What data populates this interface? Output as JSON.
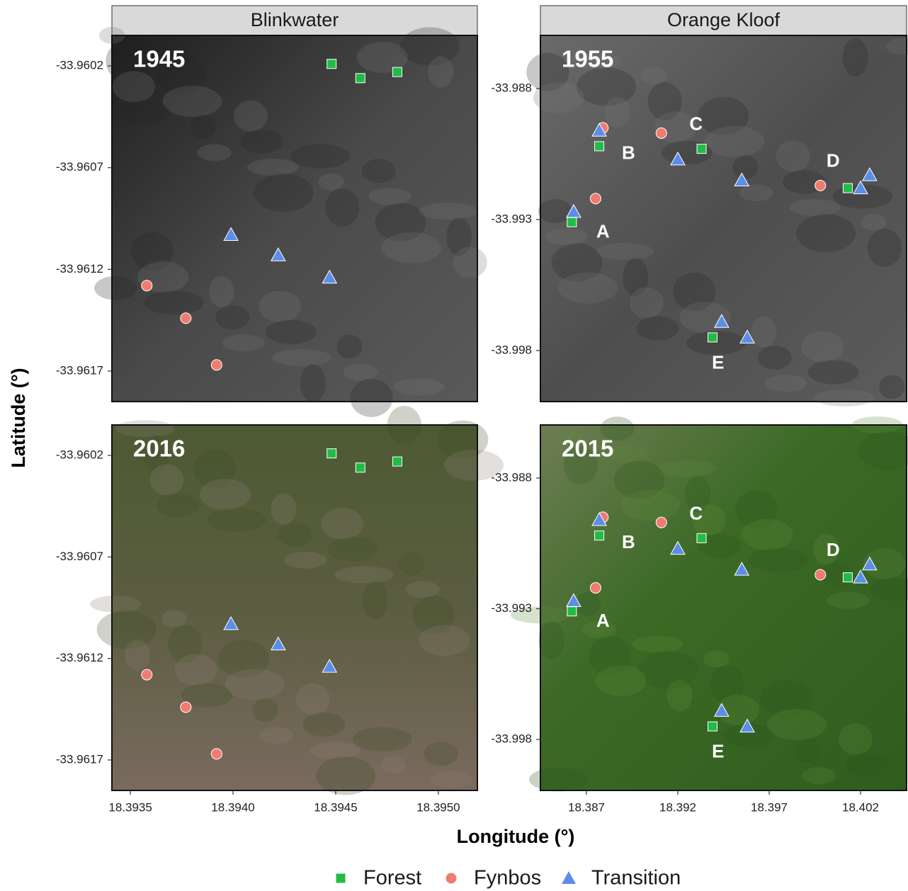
{
  "chart_data": {
    "type": "scatter",
    "x_label": "Longitude (°)",
    "y_label": "Latitude (°)",
    "series": [
      {
        "name": "Forest",
        "color": "#22bb44",
        "marker": "square"
      },
      {
        "name": "Fynbos",
        "color": "#f07b6f",
        "marker": "circle"
      },
      {
        "name": "Transition",
        "color": "#5b8ee6",
        "marker": "triangle"
      }
    ],
    "sites": [
      {
        "title": "Blinkwater",
        "years": [
          "1945",
          "2016"
        ],
        "xlim": [
          18.39341,
          18.39519
        ],
        "ylim": [
          -33.96185,
          -33.96005
        ],
        "xticks": [
          18.3935,
          {
            "value": 18.394,
            "label": "18.3940"
          },
          18.3945,
          {
            "value": 18.395,
            "label": "18.3950"
          }
        ],
        "yticks": [
          -33.9602,
          -33.9607,
          -33.9612,
          -33.9617
        ],
        "points": [
          {
            "x": [
              18.39448,
              18.39462,
              18.3948
            ],
            "y": [
              -33.96019,
              -33.96026,
              -33.96023
            ]
          },
          {
            "x": [
              18.39358,
              18.39377,
              18.39392
            ],
            "y": [
              -33.96128,
              -33.96144,
              -33.96167
            ]
          },
          {
            "x": [
              18.39399,
              18.39422,
              18.39447
            ],
            "y": [
              -33.96103,
              -33.96113,
              -33.96124
            ]
          }
        ],
        "annotations": []
      },
      {
        "title": "Orange Kloof",
        "years": [
          "1955",
          "2015"
        ],
        "xlim": [
          18.38448,
          18.40452
        ],
        "ylim": [
          -33.99995,
          -33.98597
        ],
        "xticks": [
          18.387,
          18.392,
          18.397,
          18.402
        ],
        "yticks": [
          -33.988,
          -33.993,
          -33.998
        ],
        "points": [
          {
            "x": [
              18.3877,
              18.3933,
              18.4013,
              18.3862,
              18.3939
            ],
            "y": [
              -33.9902,
              -33.9903,
              -33.9918,
              -33.9931,
              -33.9975
            ]
          },
          {
            "x": [
              18.3879,
              18.3911,
              18.3998,
              18.3875
            ],
            "y": [
              -33.9895,
              -33.9897,
              -33.9917,
              -33.9922
            ]
          },
          {
            "x": [
              18.3877,
              18.392,
              18.3955,
              18.402,
              18.4025,
              18.3863,
              18.3944,
              18.3958
            ],
            "y": [
              -33.9896,
              -33.9907,
              -33.9915,
              -33.9918,
              -33.9913,
              -33.9927,
              -33.9969,
              -33.9975
            ]
          }
        ],
        "annotations": [
          {
            "text": "A",
            "x": 18.3879,
            "y": -33.9935
          },
          {
            "text": "B",
            "x": 18.3893,
            "y": -33.9905
          },
          {
            "text": "C",
            "x": 18.393,
            "y": -33.9894
          },
          {
            "text": "D",
            "x": 18.4005,
            "y": -33.9908
          },
          {
            "text": "E",
            "x": 18.3942,
            "y": -33.9985
          }
        ]
      }
    ]
  }
}
